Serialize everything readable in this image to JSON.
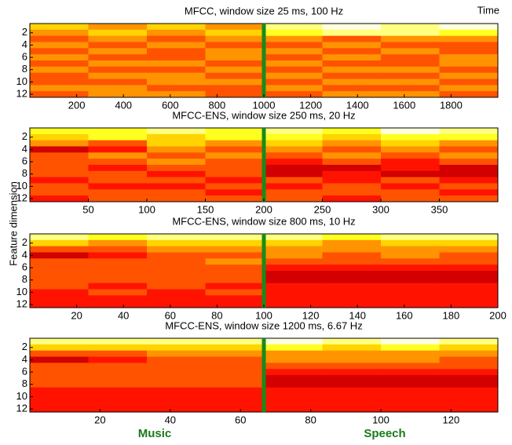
{
  "figure": {
    "ylabel": "Feature dimension",
    "time_label": "Time",
    "annotations": [
      "Music",
      "Speech"
    ],
    "annotation_color": "#1a7a1a",
    "marker_color": "#1a8a1a"
  },
  "chart_data": [
    {
      "type": "heatmap",
      "title": "MFCC, window size 25 ms, 100 Hz",
      "xlim": [
        0,
        2000
      ],
      "xticks": [
        200,
        400,
        600,
        800,
        1000,
        1200,
        1400,
        1600,
        1800
      ],
      "ylim": [
        12.5,
        0.5
      ],
      "yticks": [
        2,
        4,
        6,
        8,
        10,
        12
      ],
      "marker": 1000,
      "z": [
        [
          6,
          5,
          6,
          5,
          8,
          9,
          8,
          9
        ],
        [
          5,
          6,
          5,
          6,
          7,
          8,
          8,
          7
        ],
        [
          4,
          5,
          4,
          5,
          5,
          4,
          5,
          5
        ],
        [
          5,
          4,
          5,
          4,
          4,
          5,
          4,
          4
        ],
        [
          4,
          5,
          4,
          5,
          5,
          4,
          5,
          4
        ],
        [
          5,
          4,
          4,
          5,
          4,
          5,
          4,
          5
        ],
        [
          4,
          5,
          5,
          4,
          5,
          4,
          4,
          5
        ],
        [
          5,
          4,
          4,
          5,
          4,
          5,
          5,
          4
        ],
        [
          4,
          5,
          5,
          4,
          5,
          4,
          4,
          5
        ],
        [
          4,
          4,
          5,
          5,
          4,
          5,
          5,
          4
        ],
        [
          5,
          5,
          4,
          4,
          5,
          4,
          4,
          5
        ],
        [
          4,
          5,
          5,
          4,
          4,
          5,
          5,
          4
        ]
      ]
    },
    {
      "type": "heatmap",
      "title": "MFCC-ENS, window size 250 ms, 20 Hz",
      "xlim": [
        0,
        400
      ],
      "xticks": [
        50,
        100,
        150,
        200,
        250,
        300,
        350
      ],
      "ylim": [
        12.5,
        0.5
      ],
      "yticks": [
        2,
        4,
        6,
        8,
        10,
        12
      ],
      "marker": 200,
      "z": [
        [
          7,
          7,
          8,
          7,
          8,
          7,
          9,
          8
        ],
        [
          6,
          7,
          6,
          7,
          7,
          6,
          7,
          7
        ],
        [
          5,
          4,
          6,
          5,
          6,
          5,
          6,
          5
        ],
        [
          2,
          3,
          5,
          4,
          5,
          4,
          5,
          4
        ],
        [
          4,
          5,
          4,
          5,
          4,
          5,
          4,
          5
        ],
        [
          4,
          4,
          5,
          4,
          3,
          4,
          3,
          4
        ],
        [
          4,
          3,
          4,
          4,
          2,
          2,
          3,
          2
        ],
        [
          4,
          4,
          3,
          4,
          2,
          3,
          2,
          2
        ],
        [
          3,
          4,
          4,
          3,
          4,
          3,
          4,
          3
        ],
        [
          4,
          3,
          3,
          4,
          3,
          4,
          3,
          4
        ],
        [
          4,
          4,
          4,
          3,
          4,
          4,
          4,
          3
        ],
        [
          3,
          4,
          4,
          4,
          4,
          3,
          4,
          4
        ]
      ]
    },
    {
      "type": "heatmap",
      "title": "MFCC-ENS, window size 800 ms, 10 Hz",
      "xlim": [
        0,
        200
      ],
      "xticks": [
        20,
        40,
        60,
        80,
        100,
        120,
        140,
        160,
        180,
        200
      ],
      "ylim": [
        12.5,
        0.5
      ],
      "yticks": [
        2,
        4,
        6,
        8,
        10,
        12
      ],
      "marker": 100,
      "z": [
        [
          8,
          7,
          8,
          8,
          8,
          7,
          8,
          8
        ],
        [
          6,
          5,
          6,
          6,
          6,
          5,
          6,
          6
        ],
        [
          4,
          4,
          5,
          5,
          5,
          5,
          5,
          5
        ],
        [
          2,
          3,
          4,
          4,
          5,
          4,
          5,
          4
        ],
        [
          4,
          4,
          4,
          5,
          4,
          4,
          4,
          4
        ],
        [
          4,
          4,
          4,
          4,
          3,
          3,
          3,
          3
        ],
        [
          4,
          4,
          4,
          4,
          2,
          2,
          2,
          2
        ],
        [
          4,
          4,
          4,
          4,
          2,
          2,
          2,
          2
        ],
        [
          4,
          3,
          4,
          3,
          3,
          3,
          3,
          3
        ],
        [
          3,
          4,
          3,
          4,
          3,
          3,
          3,
          3
        ],
        [
          3,
          3,
          3,
          3,
          3,
          3,
          3,
          3
        ],
        [
          3,
          3,
          3,
          3,
          3,
          3,
          3,
          3
        ]
      ]
    },
    {
      "type": "heatmap",
      "title": "MFCC-ENS, window size 1200 ms, 6.67 Hz",
      "xlim": [
        0,
        133.33
      ],
      "xticks": [
        20,
        40,
        60,
        80,
        100,
        120
      ],
      "ylim": [
        12.5,
        0.5
      ],
      "yticks": [
        2,
        4,
        6,
        8,
        10,
        12
      ],
      "marker": 66.67,
      "z": [
        [
          8,
          8,
          8,
          8,
          9,
          8,
          9,
          8
        ],
        [
          6,
          6,
          6,
          6,
          7,
          6,
          7,
          6
        ],
        [
          4,
          4,
          5,
          5,
          5,
          5,
          5,
          5
        ],
        [
          2,
          3,
          4,
          4,
          5,
          5,
          5,
          4
        ],
        [
          4,
          4,
          4,
          4,
          4,
          4,
          4,
          4
        ],
        [
          4,
          4,
          4,
          4,
          3,
          3,
          3,
          3
        ],
        [
          4,
          4,
          4,
          4,
          2,
          2,
          2,
          2
        ],
        [
          4,
          4,
          4,
          4,
          2,
          2,
          2,
          2
        ],
        [
          3,
          3,
          3,
          3,
          3,
          3,
          3,
          3
        ],
        [
          3,
          3,
          3,
          3,
          3,
          3,
          3,
          3
        ],
        [
          3,
          3,
          3,
          3,
          3,
          3,
          3,
          3
        ],
        [
          3,
          3,
          3,
          3,
          3,
          3,
          3,
          3
        ]
      ]
    }
  ]
}
